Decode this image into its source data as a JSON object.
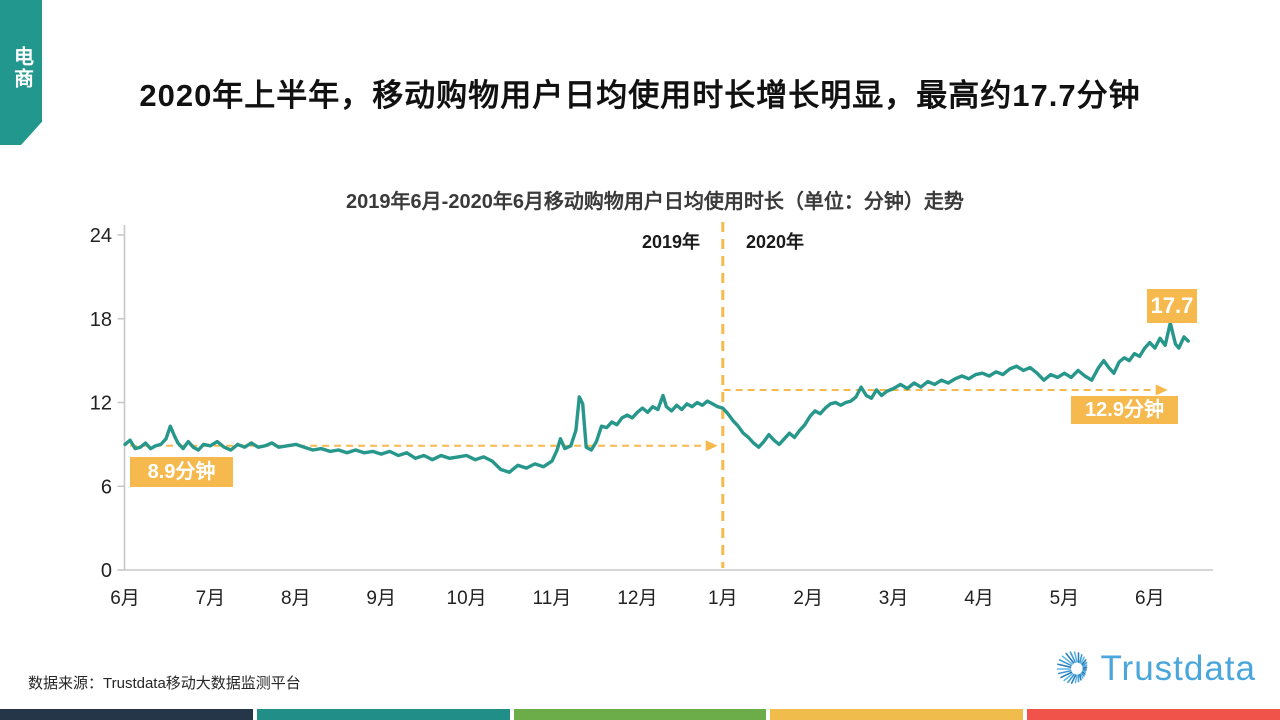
{
  "page": {
    "tab_label": "电商",
    "title": "2020年上半年，移动购物用户日均使用时长增长明显，最高约17.7分钟",
    "source": "数据来源：Trustdata移动大数据监测平台",
    "logo_text": "Trustdata"
  },
  "chart_data": {
    "type": "line",
    "title": "2019年6月-2020年6月移动购物用户日均使用时长（单位：分钟）走势",
    "unit": "分钟",
    "x_tick_labels": [
      "6月",
      "7月",
      "8月",
      "9月",
      "10月",
      "11月",
      "12月",
      "1月",
      "2月",
      "3月",
      "4月",
      "5月",
      "6月"
    ],
    "y_ticks": [
      0,
      6,
      12,
      18,
      24
    ],
    "ylim": [
      0,
      24
    ],
    "grid": false,
    "legend_position": "none",
    "era_labels": {
      "left": "2019年",
      "right": "2020年"
    },
    "divider_month_index": 7,
    "divider_color": "#F5B94E",
    "annotations": [
      {
        "label": "8.9分钟",
        "value": 8.9,
        "from_month": 0.06,
        "to_month": 6.94
      },
      {
        "label": "12.9分钟",
        "value": 12.9,
        "from_month": 7.01,
        "to_month": 12.21
      },
      {
        "label": "17.7",
        "value": 17.7,
        "peak_month": 12.24
      }
    ],
    "series": [
      {
        "name": "移动购物用户日均使用时长(分钟)",
        "color": "#27978B",
        "points": [
          [
            0,
            9.0
          ],
          [
            0.06,
            9.3
          ],
          [
            0.12,
            8.7
          ],
          [
            0.18,
            8.8
          ],
          [
            0.24,
            9.1
          ],
          [
            0.3,
            8.7
          ],
          [
            0.36,
            8.9
          ],
          [
            0.42,
            9.0
          ],
          [
            0.48,
            9.4
          ],
          [
            0.53,
            10.3
          ],
          [
            0.58,
            9.6
          ],
          [
            0.62,
            9.1
          ],
          [
            0.68,
            8.7
          ],
          [
            0.74,
            9.2
          ],
          [
            0.8,
            8.8
          ],
          [
            0.86,
            8.6
          ],
          [
            0.92,
            9.0
          ],
          [
            1.0,
            8.9
          ],
          [
            1.08,
            9.2
          ],
          [
            1.16,
            8.8
          ],
          [
            1.24,
            8.6
          ],
          [
            1.32,
            9.0
          ],
          [
            1.4,
            8.8
          ],
          [
            1.48,
            9.1
          ],
          [
            1.56,
            8.8
          ],
          [
            1.64,
            8.9
          ],
          [
            1.72,
            9.1
          ],
          [
            1.8,
            8.8
          ],
          [
            1.9,
            8.9
          ],
          [
            2.0,
            9.0
          ],
          [
            2.1,
            8.8
          ],
          [
            2.2,
            8.6
          ],
          [
            2.3,
            8.7
          ],
          [
            2.4,
            8.5
          ],
          [
            2.5,
            8.6
          ],
          [
            2.6,
            8.4
          ],
          [
            2.7,
            8.6
          ],
          [
            2.8,
            8.4
          ],
          [
            2.9,
            8.5
          ],
          [
            3.0,
            8.3
          ],
          [
            3.1,
            8.5
          ],
          [
            3.2,
            8.2
          ],
          [
            3.3,
            8.4
          ],
          [
            3.4,
            8.0
          ],
          [
            3.5,
            8.2
          ],
          [
            3.6,
            7.9
          ],
          [
            3.7,
            8.2
          ],
          [
            3.8,
            8.0
          ],
          [
            3.9,
            8.1
          ],
          [
            4.0,
            8.2
          ],
          [
            4.1,
            7.9
          ],
          [
            4.2,
            8.1
          ],
          [
            4.3,
            7.8
          ],
          [
            4.4,
            7.2
          ],
          [
            4.5,
            7.0
          ],
          [
            4.6,
            7.5
          ],
          [
            4.7,
            7.3
          ],
          [
            4.8,
            7.6
          ],
          [
            4.9,
            7.4
          ],
          [
            5.0,
            7.8
          ],
          [
            5.06,
            8.6
          ],
          [
            5.1,
            9.4
          ],
          [
            5.15,
            8.7
          ],
          [
            5.22,
            8.9
          ],
          [
            5.28,
            10.0
          ],
          [
            5.32,
            12.4
          ],
          [
            5.36,
            11.9
          ],
          [
            5.4,
            8.8
          ],
          [
            5.46,
            8.6
          ],
          [
            5.52,
            9.2
          ],
          [
            5.58,
            10.3
          ],
          [
            5.64,
            10.2
          ],
          [
            5.7,
            10.6
          ],
          [
            5.76,
            10.4
          ],
          [
            5.82,
            10.9
          ],
          [
            5.88,
            11.1
          ],
          [
            5.94,
            10.9
          ],
          [
            6.0,
            11.3
          ],
          [
            6.06,
            11.6
          ],
          [
            6.12,
            11.3
          ],
          [
            6.18,
            11.7
          ],
          [
            6.24,
            11.5
          ],
          [
            6.3,
            12.5
          ],
          [
            6.34,
            11.7
          ],
          [
            6.4,
            11.4
          ],
          [
            6.46,
            11.8
          ],
          [
            6.52,
            11.5
          ],
          [
            6.58,
            11.9
          ],
          [
            6.64,
            11.7
          ],
          [
            6.7,
            12.0
          ],
          [
            6.76,
            11.8
          ],
          [
            6.82,
            12.1
          ],
          [
            6.88,
            11.9
          ],
          [
            6.94,
            11.7
          ],
          [
            7.0,
            11.6
          ],
          [
            7.06,
            11.2
          ],
          [
            7.12,
            10.7
          ],
          [
            7.18,
            10.3
          ],
          [
            7.24,
            9.8
          ],
          [
            7.3,
            9.5
          ],
          [
            7.36,
            9.1
          ],
          [
            7.42,
            8.8
          ],
          [
            7.48,
            9.2
          ],
          [
            7.54,
            9.7
          ],
          [
            7.6,
            9.3
          ],
          [
            7.66,
            9.0
          ],
          [
            7.72,
            9.4
          ],
          [
            7.78,
            9.8
          ],
          [
            7.84,
            9.5
          ],
          [
            7.9,
            10.0
          ],
          [
            7.96,
            10.4
          ],
          [
            8.02,
            11.0
          ],
          [
            8.08,
            11.4
          ],
          [
            8.14,
            11.2
          ],
          [
            8.2,
            11.6
          ],
          [
            8.26,
            11.9
          ],
          [
            8.32,
            12.0
          ],
          [
            8.38,
            11.8
          ],
          [
            8.44,
            12.0
          ],
          [
            8.5,
            12.1
          ],
          [
            8.56,
            12.4
          ],
          [
            8.62,
            13.1
          ],
          [
            8.68,
            12.5
          ],
          [
            8.74,
            12.3
          ],
          [
            8.8,
            12.9
          ],
          [
            8.86,
            12.5
          ],
          [
            8.92,
            12.8
          ],
          [
            9.0,
            13.0
          ],
          [
            9.08,
            13.3
          ],
          [
            9.16,
            13.0
          ],
          [
            9.24,
            13.4
          ],
          [
            9.32,
            13.1
          ],
          [
            9.4,
            13.5
          ],
          [
            9.48,
            13.3
          ],
          [
            9.56,
            13.6
          ],
          [
            9.64,
            13.4
          ],
          [
            9.72,
            13.7
          ],
          [
            9.8,
            13.9
          ],
          [
            9.88,
            13.7
          ],
          [
            9.96,
            14.0
          ],
          [
            10.04,
            14.1
          ],
          [
            10.12,
            13.9
          ],
          [
            10.2,
            14.2
          ],
          [
            10.28,
            14.0
          ],
          [
            10.36,
            14.4
          ],
          [
            10.44,
            14.6
          ],
          [
            10.52,
            14.3
          ],
          [
            10.6,
            14.5
          ],
          [
            10.68,
            14.1
          ],
          [
            10.76,
            13.6
          ],
          [
            10.84,
            14.0
          ],
          [
            10.92,
            13.8
          ],
          [
            11.0,
            14.1
          ],
          [
            11.08,
            13.8
          ],
          [
            11.16,
            14.3
          ],
          [
            11.24,
            13.9
          ],
          [
            11.32,
            13.6
          ],
          [
            11.4,
            14.5
          ],
          [
            11.46,
            15.0
          ],
          [
            11.52,
            14.5
          ],
          [
            11.58,
            14.1
          ],
          [
            11.64,
            14.9
          ],
          [
            11.7,
            15.2
          ],
          [
            11.76,
            15.0
          ],
          [
            11.82,
            15.5
          ],
          [
            11.88,
            15.3
          ],
          [
            11.94,
            15.9
          ],
          [
            12.0,
            16.3
          ],
          [
            12.06,
            15.9
          ],
          [
            12.12,
            16.6
          ],
          [
            12.18,
            16.1
          ],
          [
            12.24,
            17.7
          ],
          [
            12.3,
            16.2
          ],
          [
            12.34,
            15.9
          ],
          [
            12.4,
            16.7
          ],
          [
            12.45,
            16.4
          ]
        ]
      }
    ]
  },
  "colors": {
    "accent_orange": "#F5B94E",
    "line_teal": "#27978B",
    "tab_teal": "#21978D",
    "axis_gray": "#C8C8C8",
    "logo_blue": "#4BA6DB"
  },
  "footer_bars": [
    "#253649",
    "#218F88",
    "#6CAD49",
    "#F0BD4D",
    "#F0534A"
  ]
}
